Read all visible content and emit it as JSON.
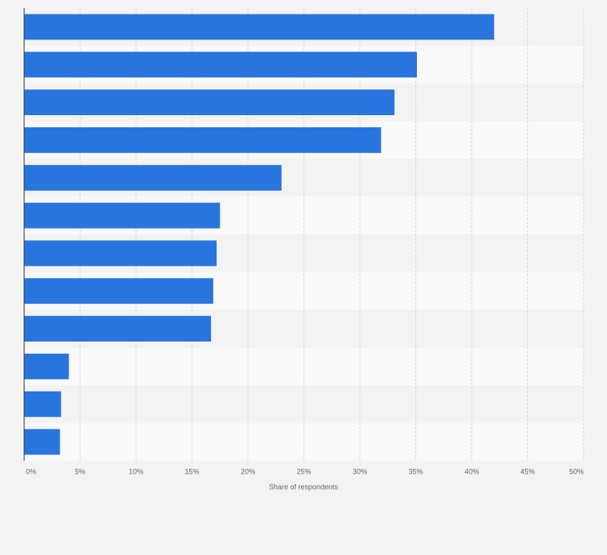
{
  "chart_data": {
    "type": "bar",
    "orientation": "horizontal",
    "x_label": "Share of respondents",
    "values": [
      42,
      35.1,
      33.1,
      31.9,
      23,
      17.5,
      17.2,
      16.9,
      16.7,
      4,
      3.3,
      3.2
    ],
    "color": "#2876dd",
    "xlim": [
      0,
      50
    ],
    "xticks": [
      {
        "value": 0,
        "label": "0%"
      },
      {
        "value": 5,
        "label": "5%"
      },
      {
        "value": 10,
        "label": "10%"
      },
      {
        "value": 15,
        "label": "15%"
      },
      {
        "value": 20,
        "label": "20%"
      },
      {
        "value": 25,
        "label": "25%"
      },
      {
        "value": 30,
        "label": "30%"
      },
      {
        "value": 35,
        "label": "35%"
      },
      {
        "value": 40,
        "label": "40%"
      },
      {
        "value": 45,
        "label": "45%"
      },
      {
        "value": 50,
        "label": "50%"
      }
    ],
    "grid": true
  }
}
